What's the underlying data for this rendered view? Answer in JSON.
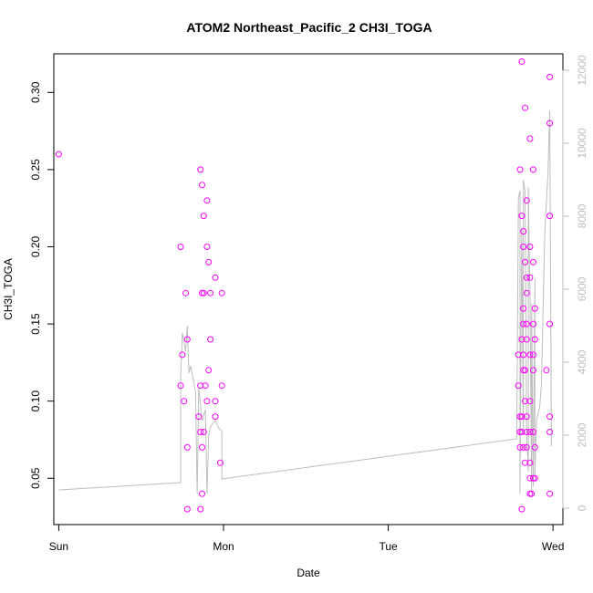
{
  "chart_data": {
    "type": "scatter",
    "title": "ATOM2 Northeast_Pacific_2 CH3I_TOGA",
    "xlabel": "Date",
    "ylabel": "CH3I_TOGA",
    "x_tick_labels": [
      "Sun",
      "Mon",
      "Tue",
      "Wed"
    ],
    "x_ticks_day": [
      0,
      1,
      2,
      3
    ],
    "xlim_day": [
      -0.03,
      3.06
    ],
    "ylim": [
      0.02,
      0.325
    ],
    "y_ticks": [
      0.05,
      0.1,
      0.15,
      0.2,
      0.25,
      0.3
    ],
    "y_tick_labels": [
      "0.05",
      "0.10",
      "0.15",
      "0.20",
      "0.25",
      "0.30"
    ],
    "y2_ticks": [
      0,
      2000,
      4000,
      6000,
      8000,
      10000,
      12000
    ],
    "y2_tick_labels": [
      "0",
      "2000",
      "4000",
      "6000",
      "8000",
      "10000",
      "12000"
    ],
    "y2lim": [
      -450,
      12450
    ],
    "grid": false,
    "colors": {
      "points": "#ff00ff",
      "altitude_line": "#bebebe",
      "right_axis": "#bdbdbd"
    },
    "series": [
      {
        "marker": "circle",
        "points_day_value": [
          [
            0.0,
            0.26
          ],
          [
            0.74,
            0.2
          ],
          [
            0.75,
            0.13
          ],
          [
            0.74,
            0.11
          ],
          [
            0.76,
            0.1
          ],
          [
            0.77,
            0.17
          ],
          [
            0.78,
            0.14
          ],
          [
            0.78,
            0.07
          ],
          [
            0.78,
            0.03
          ],
          [
            0.86,
            0.25
          ],
          [
            0.87,
            0.24
          ],
          [
            0.88,
            0.22
          ],
          [
            0.9,
            0.23
          ],
          [
            0.9,
            0.2
          ],
          [
            0.91,
            0.19
          ],
          [
            0.88,
            0.17
          ],
          [
            0.87,
            0.17
          ],
          [
            0.92,
            0.17
          ],
          [
            0.92,
            0.14
          ],
          [
            0.91,
            0.12
          ],
          [
            0.86,
            0.11
          ],
          [
            0.89,
            0.11
          ],
          [
            0.9,
            0.1
          ],
          [
            0.85,
            0.09
          ],
          [
            0.86,
            0.08
          ],
          [
            0.88,
            0.08
          ],
          [
            0.87,
            0.07
          ],
          [
            0.86,
            0.03
          ],
          [
            0.87,
            0.04
          ],
          [
            0.95,
            0.18
          ],
          [
            0.95,
            0.1
          ],
          [
            0.95,
            0.09
          ],
          [
            0.99,
            0.17
          ],
          [
            0.99,
            0.11
          ],
          [
            0.98,
            0.06
          ],
          [
            2.8,
            0.25
          ],
          [
            2.81,
            0.32
          ],
          [
            2.83,
            0.29
          ],
          [
            2.79,
            0.13
          ],
          [
            2.79,
            0.11
          ],
          [
            2.8,
            0.09
          ],
          [
            2.8,
            0.08
          ],
          [
            2.8,
            0.07
          ],
          [
            2.81,
            0.22
          ],
          [
            2.82,
            0.21
          ],
          [
            2.82,
            0.2
          ],
          [
            2.82,
            0.16
          ],
          [
            2.82,
            0.15
          ],
          [
            2.81,
            0.14
          ],
          [
            2.82,
            0.13
          ],
          [
            2.82,
            0.12
          ],
          [
            2.81,
            0.09
          ],
          [
            2.81,
            0.08
          ],
          [
            2.82,
            0.07
          ],
          [
            2.81,
            0.03
          ],
          [
            2.83,
            0.19
          ],
          [
            2.84,
            0.23
          ],
          [
            2.84,
            0.18
          ],
          [
            2.84,
            0.17
          ],
          [
            2.84,
            0.15
          ],
          [
            2.84,
            0.14
          ],
          [
            2.83,
            0.12
          ],
          [
            2.83,
            0.1
          ],
          [
            2.84,
            0.09
          ],
          [
            2.84,
            0.08
          ],
          [
            2.84,
            0.07
          ],
          [
            2.83,
            0.06
          ],
          [
            2.86,
            0.27
          ],
          [
            2.86,
            0.2
          ],
          [
            2.86,
            0.18
          ],
          [
            2.86,
            0.13
          ],
          [
            2.86,
            0.1
          ],
          [
            2.86,
            0.08
          ],
          [
            2.86,
            0.06
          ],
          [
            2.86,
            0.05
          ],
          [
            2.86,
            0.04
          ],
          [
            2.88,
            0.25
          ],
          [
            2.88,
            0.19
          ],
          [
            2.88,
            0.15
          ],
          [
            2.88,
            0.13
          ],
          [
            2.88,
            0.12
          ],
          [
            2.88,
            0.08
          ],
          [
            2.88,
            0.05
          ],
          [
            2.87,
            0.04
          ],
          [
            2.89,
            0.16
          ],
          [
            2.89,
            0.14
          ],
          [
            2.89,
            0.07
          ],
          [
            2.89,
            0.05
          ],
          [
            2.96,
            0.12
          ],
          [
            2.98,
            0.31
          ],
          [
            2.98,
            0.28
          ],
          [
            2.98,
            0.22
          ],
          [
            2.98,
            0.15
          ],
          [
            2.98,
            0.09
          ],
          [
            2.98,
            0.08
          ],
          [
            2.98,
            0.04
          ]
        ]
      },
      {
        "type": "line",
        "axis": "right",
        "points_day_value": [
          [
            0.0,
            500
          ],
          [
            0.74,
            700
          ],
          [
            0.74,
            3600
          ],
          [
            0.75,
            4800
          ],
          [
            0.77,
            4300
          ],
          [
            0.78,
            5000
          ],
          [
            0.79,
            3700
          ],
          [
            0.8,
            3900
          ],
          [
            0.83,
            3200
          ],
          [
            0.84,
            400
          ],
          [
            0.85,
            3300
          ],
          [
            0.87,
            2400
          ],
          [
            0.89,
            2700
          ],
          [
            0.9,
            400
          ],
          [
            0.91,
            2000
          ],
          [
            0.92,
            2200
          ],
          [
            0.93,
            2300
          ],
          [
            0.95,
            2400
          ],
          [
            0.97,
            2200
          ],
          [
            0.99,
            2100
          ],
          [
            0.99,
            800
          ],
          [
            2.78,
            1900
          ],
          [
            2.79,
            8500
          ],
          [
            2.8,
            8700
          ],
          [
            2.8,
            400
          ],
          [
            2.81,
            7700
          ],
          [
            2.82,
            2000
          ],
          [
            2.82,
            9000
          ],
          [
            2.83,
            8700
          ],
          [
            2.84,
            2000
          ],
          [
            2.85,
            1000
          ],
          [
            2.85,
            8800
          ],
          [
            2.86,
            5900
          ],
          [
            2.87,
            400
          ],
          [
            2.87,
            5600
          ],
          [
            2.88,
            600
          ],
          [
            2.89,
            6300
          ],
          [
            2.89,
            900
          ],
          [
            2.9,
            2400
          ],
          [
            2.92,
            2800
          ],
          [
            2.93,
            3400
          ],
          [
            2.95,
            7500
          ],
          [
            2.97,
            9200
          ],
          [
            2.98,
            10900
          ],
          [
            2.99,
            1700
          ]
        ]
      }
    ]
  }
}
